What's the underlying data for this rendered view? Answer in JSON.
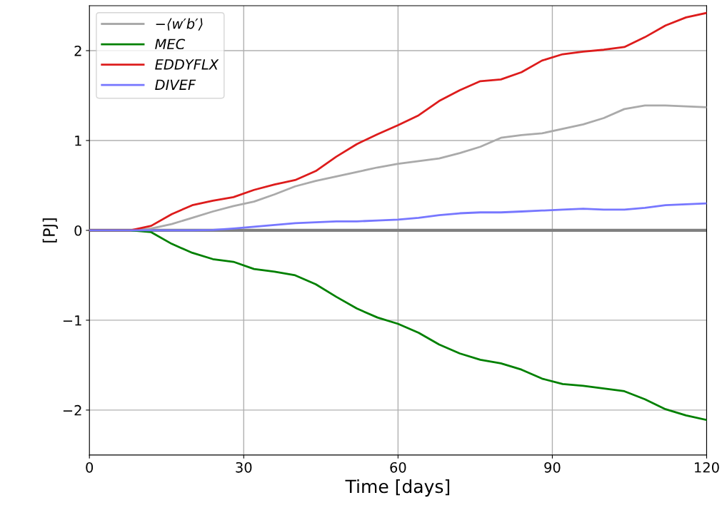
{
  "chart_data": {
    "type": "line",
    "xlabel": "Time [days]",
    "ylabel": "[PJ]",
    "x": [
      0,
      4,
      8,
      12,
      16,
      20,
      24,
      28,
      32,
      36,
      40,
      44,
      48,
      52,
      56,
      60,
      64,
      68,
      72,
      76,
      80,
      84,
      88,
      92,
      96,
      100,
      104,
      108,
      112,
      116,
      120
    ],
    "series": [
      {
        "name": "−⟨w′b′⟩",
        "color": "#aaaaaa",
        "values": [
          0,
          0,
          0,
          0.02,
          0.07,
          0.14,
          0.21,
          0.27,
          0.32,
          0.4,
          0.49,
          0.55,
          0.6,
          0.65,
          0.7,
          0.74,
          0.77,
          0.8,
          0.86,
          0.93,
          1.03,
          1.06,
          1.08,
          1.13,
          1.18,
          1.25,
          1.35,
          1.39,
          1.39,
          1.38,
          1.37
        ]
      },
      {
        "name": "MEC",
        "color": "#008000",
        "values": [
          0,
          0,
          0,
          -0.02,
          -0.15,
          -0.25,
          -0.32,
          -0.35,
          -0.43,
          -0.46,
          -0.5,
          -0.6,
          -0.74,
          -0.87,
          -0.97,
          -1.04,
          -1.14,
          -1.27,
          -1.37,
          -1.44,
          -1.48,
          -1.55,
          -1.65,
          -1.71,
          -1.73,
          -1.76,
          -1.79,
          -1.88,
          -1.99,
          -2.06,
          -2.11
        ]
      },
      {
        "name": "EDDYFLX",
        "color": "#dd1c1c",
        "values": [
          0,
          0,
          0,
          0.05,
          0.18,
          0.28,
          0.33,
          0.37,
          0.45,
          0.51,
          0.56,
          0.66,
          0.82,
          0.96,
          1.07,
          1.17,
          1.28,
          1.44,
          1.56,
          1.66,
          1.68,
          1.76,
          1.89,
          1.96,
          1.99,
          2.01,
          2.04,
          2.15,
          2.28,
          2.37,
          2.42
        ]
      },
      {
        "name": "DIVEF",
        "color": "#7777ff",
        "values": [
          0,
          0,
          0,
          0,
          0,
          0,
          0.005,
          0.02,
          0.04,
          0.06,
          0.08,
          0.09,
          0.1,
          0.1,
          0.11,
          0.12,
          0.14,
          0.17,
          0.19,
          0.2,
          0.2,
          0.21,
          0.22,
          0.23,
          0.24,
          0.23,
          0.23,
          0.25,
          0.28,
          0.29,
          0.3
        ]
      }
    ],
    "xlim": [
      0,
      120
    ],
    "xticks": [
      0,
      30,
      60,
      90,
      120
    ],
    "ylim": [
      -2.5,
      2.5
    ],
    "yticks": [
      {
        "value": -2,
        "label": "−2"
      },
      {
        "value": -1,
        "label": "−1"
      },
      0,
      1,
      2
    ],
    "ref_lines": [
      {
        "axis": "y",
        "value": 0,
        "color": "#808080"
      }
    ],
    "grid": true,
    "legend": "top left"
  }
}
